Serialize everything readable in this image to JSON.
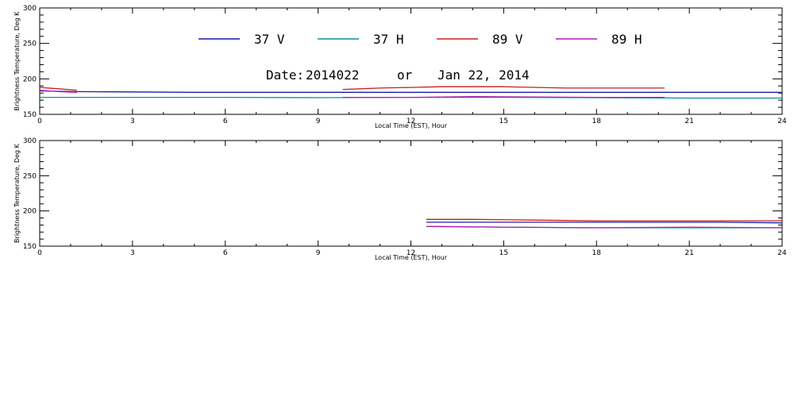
{
  "legend": [
    {
      "label": "37 V",
      "color": "#1c1ca8"
    },
    {
      "label": "37 H",
      "color": "#0f8c9a"
    },
    {
      "label": "89 V",
      "color": "#c81e1e"
    },
    {
      "label": "89 H",
      "color": "#b21cb2"
    }
  ],
  "date_line": {
    "prefix": "Date:",
    "date_code": "2014022",
    "or_word": "or",
    "date_text": "Jan 22, 2014"
  },
  "chart_data": [
    {
      "type": "line",
      "xlabel": "Local Time (EST), Hour",
      "ylabel": "Brightness Temperature, Deg K",
      "xlim": [
        0,
        24
      ],
      "ylim": [
        150,
        300
      ],
      "xticks": [
        0,
        3,
        6,
        9,
        12,
        15,
        18,
        21,
        24
      ],
      "yticks": [
        150,
        200,
        250,
        300
      ],
      "grid": false,
      "legend_position": "top",
      "series": [
        {
          "name": "37 V",
          "color": "#1c1ca8",
          "segments": [
            [
              [
                0,
                183
              ],
              [
                1.2,
                182
              ],
              [
                5,
                181
              ],
              [
                9,
                181
              ],
              [
                13,
                181
              ],
              [
                17,
                181
              ],
              [
                21,
                181
              ],
              [
                24,
                181
              ]
            ]
          ]
        },
        {
          "name": "37 H",
          "color": "#0f8c9a",
          "segments": [
            [
              [
                0,
                174
              ],
              [
                3,
                174
              ],
              [
                6,
                174
              ],
              [
                9,
                173.5
              ],
              [
                12,
                174
              ],
              [
                15,
                174
              ],
              [
                18,
                173.5
              ],
              [
                21,
                173
              ],
              [
                24,
                173
              ]
            ]
          ]
        },
        {
          "name": "89 V",
          "color": "#c81e1e",
          "segments": [
            [
              [
                0,
                188
              ],
              [
                0.6,
                186
              ],
              [
                1.2,
                184
              ]
            ],
            [
              [
                9.8,
                185
              ],
              [
                11,
                187
              ],
              [
                12,
                188
              ],
              [
                13,
                189
              ],
              [
                15,
                189
              ],
              [
                17,
                187
              ],
              [
                19,
                187
              ],
              [
                20.2,
                187
              ]
            ]
          ]
        },
        {
          "name": "89 H",
          "color": "#b21cb2",
          "segments": [
            [
              [
                0,
                184
              ],
              [
                0.6,
                182
              ],
              [
                1.2,
                181
              ]
            ],
            [
              [
                9.8,
                174
              ],
              [
                12,
                174
              ],
              [
                14,
                175
              ],
              [
                16,
                174.5
              ],
              [
                18,
                174
              ],
              [
                20.2,
                174
              ]
            ]
          ]
        }
      ]
    },
    {
      "type": "line",
      "xlabel": "Local Time (EST), Hour",
      "ylabel": "Brightness Temperature, Deg K",
      "xlim": [
        0,
        24
      ],
      "ylim": [
        150,
        300
      ],
      "xticks": [
        0,
        3,
        6,
        9,
        12,
        15,
        18,
        21,
        24
      ],
      "yticks": [
        150,
        200,
        250,
        300
      ],
      "grid": false,
      "series": [
        {
          "name": "37 V",
          "color": "#1c1ca8",
          "segments": [
            [
              [
                12.5,
                184
              ],
              [
                14,
                184
              ],
              [
                16,
                184
              ],
              [
                18,
                184
              ],
              [
                20,
                184
              ],
              [
                22,
                184
              ],
              [
                24,
                183
              ]
            ]
          ]
        },
        {
          "name": "37 H",
          "color": "#0f8c9a",
          "segments": [
            [
              [
                12.5,
                178
              ],
              [
                15,
                177
              ],
              [
                18,
                176
              ],
              [
                21,
                176
              ],
              [
                24,
                176
              ]
            ]
          ]
        },
        {
          "name": "89 V",
          "color": "#c81e1e",
          "segments": [
            [
              [
                12.5,
                188
              ],
              [
                14,
                188
              ],
              [
                16,
                187
              ],
              [
                18,
                186
              ],
              [
                20,
                186
              ],
              [
                22,
                186
              ],
              [
                24,
                186
              ]
            ]
          ]
        },
        {
          "name": "89 H",
          "color": "#b21cb2",
          "segments": [
            [
              [
                12.5,
                178
              ],
              [
                15,
                177
              ],
              [
                18,
                176
              ],
              [
                21,
                177
              ],
              [
                24,
                176
              ]
            ]
          ]
        }
      ]
    }
  ]
}
